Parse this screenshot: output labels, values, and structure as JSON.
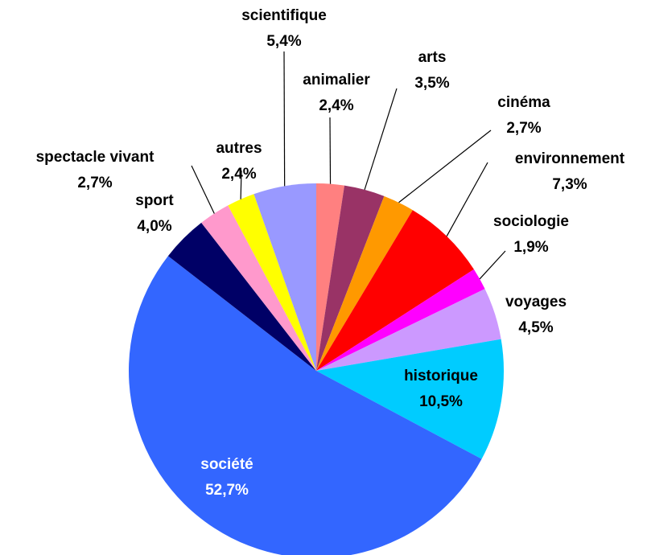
{
  "chart_data": {
    "type": "pie",
    "categories": [
      "animalier",
      "arts",
      "cinéma",
      "environnement",
      "sociologie",
      "voyages",
      "historique",
      "société",
      "sport",
      "spectacle vivant",
      "autres",
      "scientifique"
    ],
    "values": [
      2.4,
      3.5,
      2.7,
      7.3,
      1.9,
      4.5,
      10.5,
      52.7,
      4.0,
      2.7,
      2.4,
      5.4
    ],
    "value_labels": [
      "2,4%",
      "3,5%",
      "2,7%",
      "7,3%",
      "1,9%",
      "4,5%",
      "10,5%",
      "52,7%",
      "4,0%",
      "2,7%",
      "2,4%",
      "5,4%"
    ],
    "colors": [
      "#ff8080",
      "#993366",
      "#ff9900",
      "#ff0000",
      "#ff00ff",
      "#cc99ff",
      "#00ccff",
      "#3366ff",
      "#000066",
      "#ff99cc",
      "#ffff00",
      "#9999ff"
    ]
  }
}
